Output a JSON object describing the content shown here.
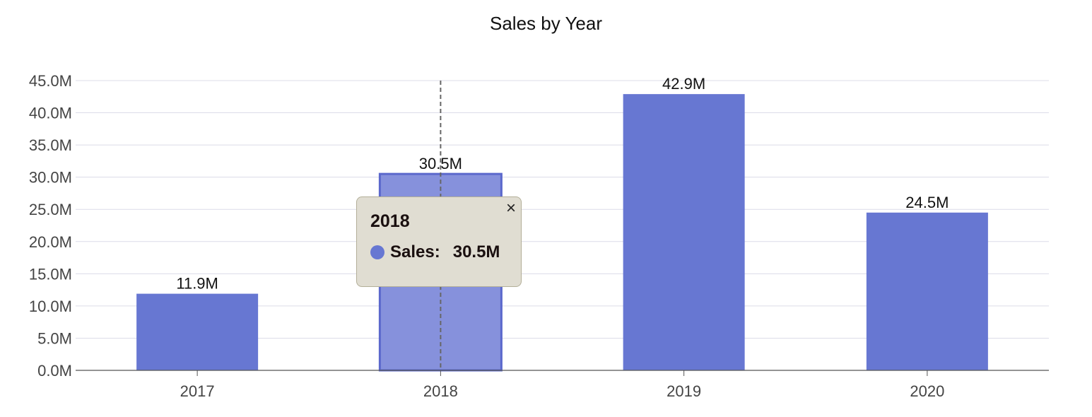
{
  "chart_data": {
    "type": "bar",
    "title": "Sales by Year",
    "xlabel": "",
    "ylabel": "",
    "categories": [
      "2017",
      "2018",
      "2019",
      "2020"
    ],
    "series": [
      {
        "values": [
          11.9,
          30.5,
          42.9,
          24.5
        ]
      }
    ],
    "data_labels": [
      "11.9M",
      "30.5M",
      "42.9M",
      "24.5M"
    ],
    "ylim": [
      0,
      45
    ],
    "y_ticks": [
      "0.0M",
      "5.0M",
      "10.0M",
      "15.0M",
      "20.0M",
      "25.0M",
      "30.0M",
      "35.0M",
      "40.0M",
      "45.0M"
    ],
    "grid": true,
    "legend": "none",
    "colors": {
      "bar": "#6777d2",
      "bar_highlight": "#8691dc",
      "bar_highlight_border": "#5b68cc",
      "grid": "#dcdce8",
      "axis": "#555555",
      "crosshair": "#666666"
    },
    "highlighted_index": 1
  },
  "tooltip": {
    "title": "2018",
    "label": "Sales:",
    "value": "30.5M",
    "dot_color": "#6777d2",
    "close_symbol": "×"
  }
}
